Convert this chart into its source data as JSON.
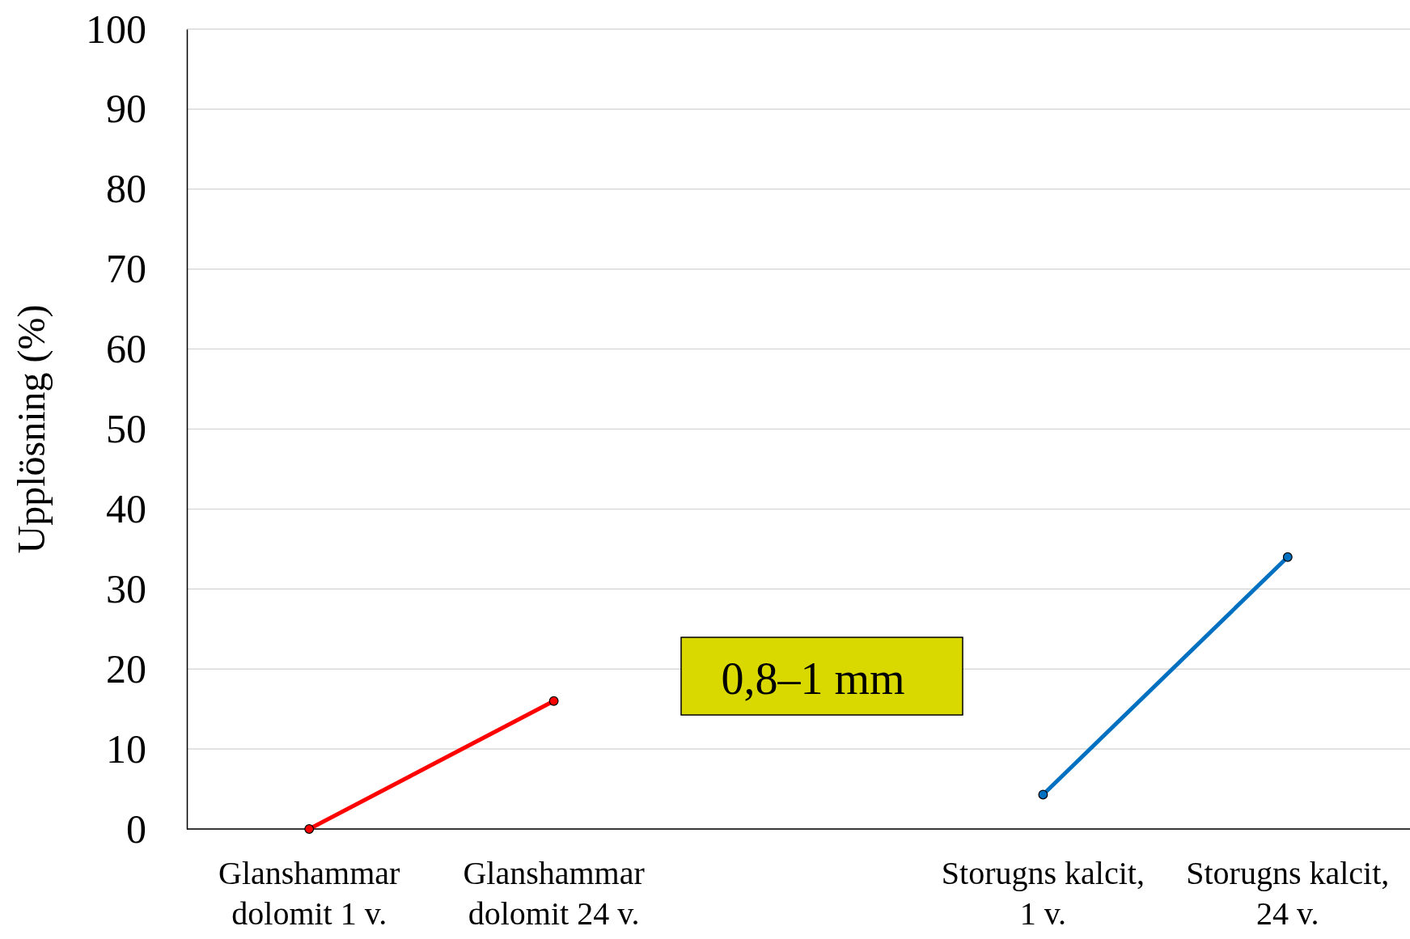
{
  "chart_data": {
    "type": "line",
    "ylabel": "Upplösning (%)",
    "categories": [
      "Glanshammar dolomit 1 v.",
      "Glanshammar dolomit 24 v.",
      null,
      "Storugns kalcit, 1 v.",
      "Storugns kalcit, 24 v."
    ],
    "series": [
      {
        "color": "#ff0000",
        "values": [
          0,
          16,
          null,
          null,
          null
        ]
      },
      {
        "color": "#0070c0",
        "values": [
          null,
          null,
          null,
          4.3,
          34
        ]
      }
    ],
    "ylim": [
      0,
      100
    ],
    "yticks": [
      0,
      10,
      20,
      30,
      40,
      50,
      60,
      70,
      80,
      90,
      100
    ],
    "grid": "y",
    "marker": "circle",
    "line_style": "solid",
    "annotations": [
      "0,8–1 mm"
    ]
  }
}
